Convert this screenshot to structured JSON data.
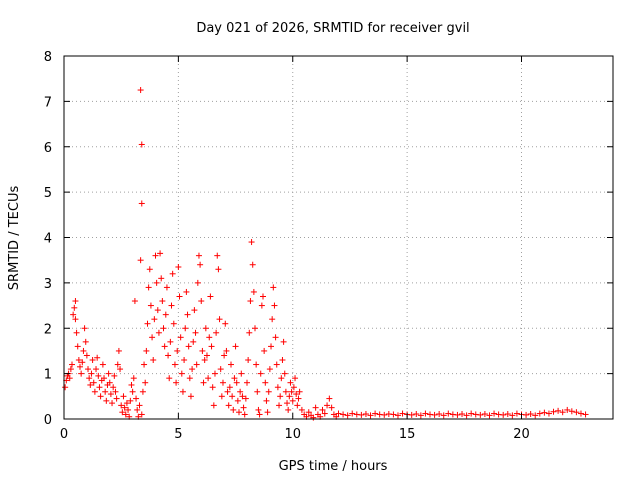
{
  "chart_data": {
    "type": "scatter",
    "title": "Day 021 of 2026, SRMTID for receiver gvil",
    "xlabel": "GPS time / hours",
    "ylabel": "SRMTID / TECUs",
    "xlim": [
      0,
      24
    ],
    "ylim": [
      0,
      8
    ],
    "x_ticks": [
      0,
      5,
      10,
      15,
      20
    ],
    "y_ticks": [
      0,
      1,
      2,
      3,
      4,
      5,
      6,
      7,
      8
    ],
    "grid": true,
    "marker": "+",
    "marker_color": "#ff0000",
    "series": [
      {
        "name": "SRMTID",
        "points": [
          [
            0.05,
            0.7
          ],
          [
            0.1,
            0.85
          ],
          [
            0.15,
            0.95
          ],
          [
            0.2,
            1.0
          ],
          [
            0.25,
            0.9
          ],
          [
            0.3,
            1.1
          ],
          [
            0.35,
            1.2
          ],
          [
            0.4,
            2.3
          ],
          [
            0.45,
            2.45
          ],
          [
            0.5,
            2.6
          ],
          [
            0.5,
            2.2
          ],
          [
            0.55,
            1.9
          ],
          [
            0.6,
            1.6
          ],
          [
            0.65,
            1.3
          ],
          [
            0.7,
            1.15
          ],
          [
            0.75,
            1.0
          ],
          [
            0.8,
            1.25
          ],
          [
            0.85,
            1.5
          ],
          [
            0.9,
            2.0
          ],
          [
            0.95,
            1.7
          ],
          [
            1.0,
            1.4
          ],
          [
            1.05,
            1.1
          ],
          [
            1.1,
            0.9
          ],
          [
            1.15,
            0.75
          ],
          [
            1.2,
            1.0
          ],
          [
            1.25,
            1.3
          ],
          [
            1.3,
            0.8
          ],
          [
            1.35,
            0.6
          ],
          [
            1.4,
            1.1
          ],
          [
            1.45,
            1.35
          ],
          [
            1.5,
            0.95
          ],
          [
            1.55,
            0.7
          ],
          [
            1.6,
            0.5
          ],
          [
            1.65,
            0.85
          ],
          [
            1.7,
            1.2
          ],
          [
            1.75,
            0.9
          ],
          [
            1.8,
            0.6
          ],
          [
            1.85,
            0.4
          ],
          [
            1.9,
            0.75
          ],
          [
            1.95,
            1.0
          ],
          [
            2.0,
            0.8
          ],
          [
            2.05,
            0.55
          ],
          [
            2.1,
            0.35
          ],
          [
            2.15,
            0.7
          ],
          [
            2.2,
            0.95
          ],
          [
            2.25,
            0.6
          ],
          [
            2.3,
            0.45
          ],
          [
            2.35,
            1.2
          ],
          [
            2.4,
            1.5
          ],
          [
            2.45,
            1.1
          ],
          [
            2.5,
            0.3
          ],
          [
            2.55,
            0.15
          ],
          [
            2.6,
            0.5
          ],
          [
            2.65,
            0.25
          ],
          [
            2.7,
            0.1
          ],
          [
            2.75,
            0.35
          ],
          [
            2.8,
            0.2
          ],
          [
            2.85,
            0.05
          ],
          [
            2.9,
            0.4
          ],
          [
            2.95,
            0.75
          ],
          [
            3.0,
            0.6
          ],
          [
            3.05,
            0.9
          ],
          [
            3.1,
            2.6
          ],
          [
            3.15,
            0.45
          ],
          [
            3.2,
            0.2
          ],
          [
            3.25,
            0.05
          ],
          [
            3.3,
            0.3
          ],
          [
            3.35,
            3.5
          ],
          [
            3.4,
            0.1
          ],
          [
            3.45,
            0.6
          ],
          [
            3.35,
            7.25
          ],
          [
            3.4,
            6.05
          ],
          [
            3.4,
            4.75
          ],
          [
            3.5,
            1.2
          ],
          [
            3.55,
            0.8
          ],
          [
            3.6,
            1.5
          ],
          [
            3.65,
            2.1
          ],
          [
            3.7,
            2.9
          ],
          [
            3.75,
            3.3
          ],
          [
            3.8,
            2.5
          ],
          [
            3.85,
            1.8
          ],
          [
            3.9,
            1.3
          ],
          [
            3.95,
            2.2
          ],
          [
            4.0,
            3.6
          ],
          [
            4.05,
            3.0
          ],
          [
            4.1,
            2.4
          ],
          [
            4.15,
            1.9
          ],
          [
            4.2,
            3.65
          ],
          [
            4.25,
            3.1
          ],
          [
            4.3,
            2.6
          ],
          [
            4.35,
            2.0
          ],
          [
            4.4,
            1.6
          ],
          [
            4.45,
            2.3
          ],
          [
            4.5,
            2.9
          ],
          [
            4.55,
            1.4
          ],
          [
            4.6,
            0.9
          ],
          [
            4.65,
            1.7
          ],
          [
            4.7,
            2.5
          ],
          [
            4.75,
            3.2
          ],
          [
            4.8,
            2.1
          ],
          [
            4.85,
            1.2
          ],
          [
            4.9,
            0.8
          ],
          [
            4.95,
            1.5
          ],
          [
            5.0,
            3.35
          ],
          [
            5.05,
            2.7
          ],
          [
            5.1,
            1.8
          ],
          [
            5.15,
            1.0
          ],
          [
            5.2,
            0.6
          ],
          [
            5.25,
            1.3
          ],
          [
            5.3,
            2.0
          ],
          [
            5.35,
            2.8
          ],
          [
            5.4,
            2.3
          ],
          [
            5.45,
            1.6
          ],
          [
            5.5,
            0.9
          ],
          [
            5.55,
            0.5
          ],
          [
            5.6,
            1.1
          ],
          [
            5.65,
            1.7
          ],
          [
            5.7,
            2.4
          ],
          [
            5.75,
            1.9
          ],
          [
            5.8,
            1.2
          ],
          [
            5.85,
            3.0
          ],
          [
            5.9,
            3.6
          ],
          [
            5.95,
            3.4
          ],
          [
            6.0,
            2.6
          ],
          [
            6.05,
            1.5
          ],
          [
            6.1,
            0.8
          ],
          [
            6.15,
            1.3
          ],
          [
            6.2,
            2.0
          ],
          [
            6.25,
            1.4
          ],
          [
            6.3,
            0.9
          ],
          [
            6.35,
            1.8
          ],
          [
            6.4,
            2.7
          ],
          [
            6.45,
            1.6
          ],
          [
            6.5,
            0.7
          ],
          [
            6.55,
            0.3
          ],
          [
            6.6,
            1.0
          ],
          [
            6.65,
            1.9
          ],
          [
            6.7,
            3.6
          ],
          [
            6.75,
            3.3
          ],
          [
            6.8,
            2.2
          ],
          [
            6.85,
            1.1
          ],
          [
            6.9,
            0.5
          ],
          [
            6.95,
            0.8
          ],
          [
            7.0,
            1.4
          ],
          [
            7.05,
            2.1
          ],
          [
            7.1,
            1.5
          ],
          [
            7.15,
            0.6
          ],
          [
            7.2,
            0.3
          ],
          [
            7.25,
            0.7
          ],
          [
            7.3,
            1.2
          ],
          [
            7.35,
            0.5
          ],
          [
            7.4,
            0.2
          ],
          [
            7.45,
            0.9
          ],
          [
            7.5,
            1.6
          ],
          [
            7.55,
            0.8
          ],
          [
            7.6,
            0.4
          ],
          [
            7.65,
            0.15
          ],
          [
            7.7,
            0.6
          ],
          [
            7.75,
            1.0
          ],
          [
            7.8,
            0.5
          ],
          [
            7.85,
            0.25
          ],
          [
            7.9,
            0.1
          ],
          [
            7.95,
            0.45
          ],
          [
            8.0,
            0.8
          ],
          [
            8.05,
            1.3
          ],
          [
            8.1,
            1.9
          ],
          [
            8.15,
            2.6
          ],
          [
            8.2,
            3.9
          ],
          [
            8.25,
            3.4
          ],
          [
            8.3,
            2.8
          ],
          [
            8.35,
            2.0
          ],
          [
            8.4,
            1.2
          ],
          [
            8.45,
            0.6
          ],
          [
            8.5,
            0.2
          ],
          [
            8.55,
            0.1
          ],
          [
            8.6,
            1.0
          ],
          [
            8.65,
            2.5
          ],
          [
            8.7,
            2.7
          ],
          [
            8.75,
            1.5
          ],
          [
            8.8,
            0.8
          ],
          [
            8.85,
            0.4
          ],
          [
            8.9,
            0.15
          ],
          [
            8.95,
            0.6
          ],
          [
            9.0,
            1.1
          ],
          [
            9.05,
            1.6
          ],
          [
            9.1,
            2.2
          ],
          [
            9.15,
            2.9
          ],
          [
            9.2,
            2.5
          ],
          [
            9.25,
            1.8
          ],
          [
            9.3,
            1.2
          ],
          [
            9.35,
            0.7
          ],
          [
            9.4,
            0.3
          ],
          [
            9.45,
            0.5
          ],
          [
            9.5,
            0.9
          ],
          [
            9.55,
            1.3
          ],
          [
            9.6,
            1.7
          ],
          [
            9.65,
            1.0
          ],
          [
            9.7,
            0.6
          ],
          [
            9.75,
            0.35
          ],
          [
            9.8,
            0.2
          ],
          [
            9.85,
            0.5
          ],
          [
            9.9,
            0.8
          ],
          [
            9.95,
            0.6
          ],
          [
            10.0,
            0.4
          ],
          [
            10.05,
            0.7
          ],
          [
            10.1,
            0.9
          ],
          [
            10.15,
            0.55
          ],
          [
            10.2,
            0.3
          ],
          [
            10.25,
            0.45
          ],
          [
            10.3,
            0.6
          ],
          [
            10.4,
            0.2
          ],
          [
            10.5,
            0.1
          ],
          [
            10.6,
            0.05
          ],
          [
            10.7,
            0.15
          ],
          [
            10.8,
            0.08
          ],
          [
            10.9,
            0.03
          ],
          [
            11.0,
            0.25
          ],
          [
            11.1,
            0.1
          ],
          [
            11.2,
            0.05
          ],
          [
            11.3,
            0.2
          ],
          [
            11.4,
            0.12
          ],
          [
            11.5,
            0.3
          ],
          [
            11.6,
            0.45
          ],
          [
            11.7,
            0.25
          ],
          [
            11.8,
            0.1
          ],
          [
            11.9,
            0.05
          ],
          [
            12.0,
            0.12
          ],
          [
            12.2,
            0.1
          ],
          [
            12.4,
            0.08
          ],
          [
            12.6,
            0.12
          ],
          [
            12.8,
            0.1
          ],
          [
            13.0,
            0.09
          ],
          [
            13.2,
            0.11
          ],
          [
            13.4,
            0.08
          ],
          [
            13.6,
            0.12
          ],
          [
            13.8,
            0.1
          ],
          [
            14.0,
            0.09
          ],
          [
            14.2,
            0.11
          ],
          [
            14.4,
            0.1
          ],
          [
            14.6,
            0.08
          ],
          [
            14.8,
            0.12
          ],
          [
            15.0,
            0.1
          ],
          [
            15.2,
            0.09
          ],
          [
            15.4,
            0.11
          ],
          [
            15.6,
            0.08
          ],
          [
            15.8,
            0.12
          ],
          [
            16.0,
            0.1
          ],
          [
            16.2,
            0.09
          ],
          [
            16.4,
            0.11
          ],
          [
            16.6,
            0.08
          ],
          [
            16.8,
            0.12
          ],
          [
            17.0,
            0.1
          ],
          [
            17.2,
            0.09
          ],
          [
            17.4,
            0.11
          ],
          [
            17.6,
            0.08
          ],
          [
            17.8,
            0.12
          ],
          [
            18.0,
            0.1
          ],
          [
            18.2,
            0.09
          ],
          [
            18.4,
            0.11
          ],
          [
            18.6,
            0.08
          ],
          [
            18.8,
            0.12
          ],
          [
            19.0,
            0.1
          ],
          [
            19.2,
            0.09
          ],
          [
            19.4,
            0.11
          ],
          [
            19.6,
            0.08
          ],
          [
            19.8,
            0.12
          ],
          [
            20.0,
            0.1
          ],
          [
            20.2,
            0.09
          ],
          [
            20.4,
            0.11
          ],
          [
            20.6,
            0.08
          ],
          [
            20.8,
            0.12
          ],
          [
            21.0,
            0.14
          ],
          [
            21.2,
            0.12
          ],
          [
            21.4,
            0.16
          ],
          [
            21.6,
            0.18
          ],
          [
            21.8,
            0.15
          ],
          [
            22.0,
            0.2
          ],
          [
            22.2,
            0.17
          ],
          [
            22.4,
            0.15
          ],
          [
            22.6,
            0.12
          ],
          [
            22.8,
            0.1
          ]
        ]
      }
    ]
  }
}
